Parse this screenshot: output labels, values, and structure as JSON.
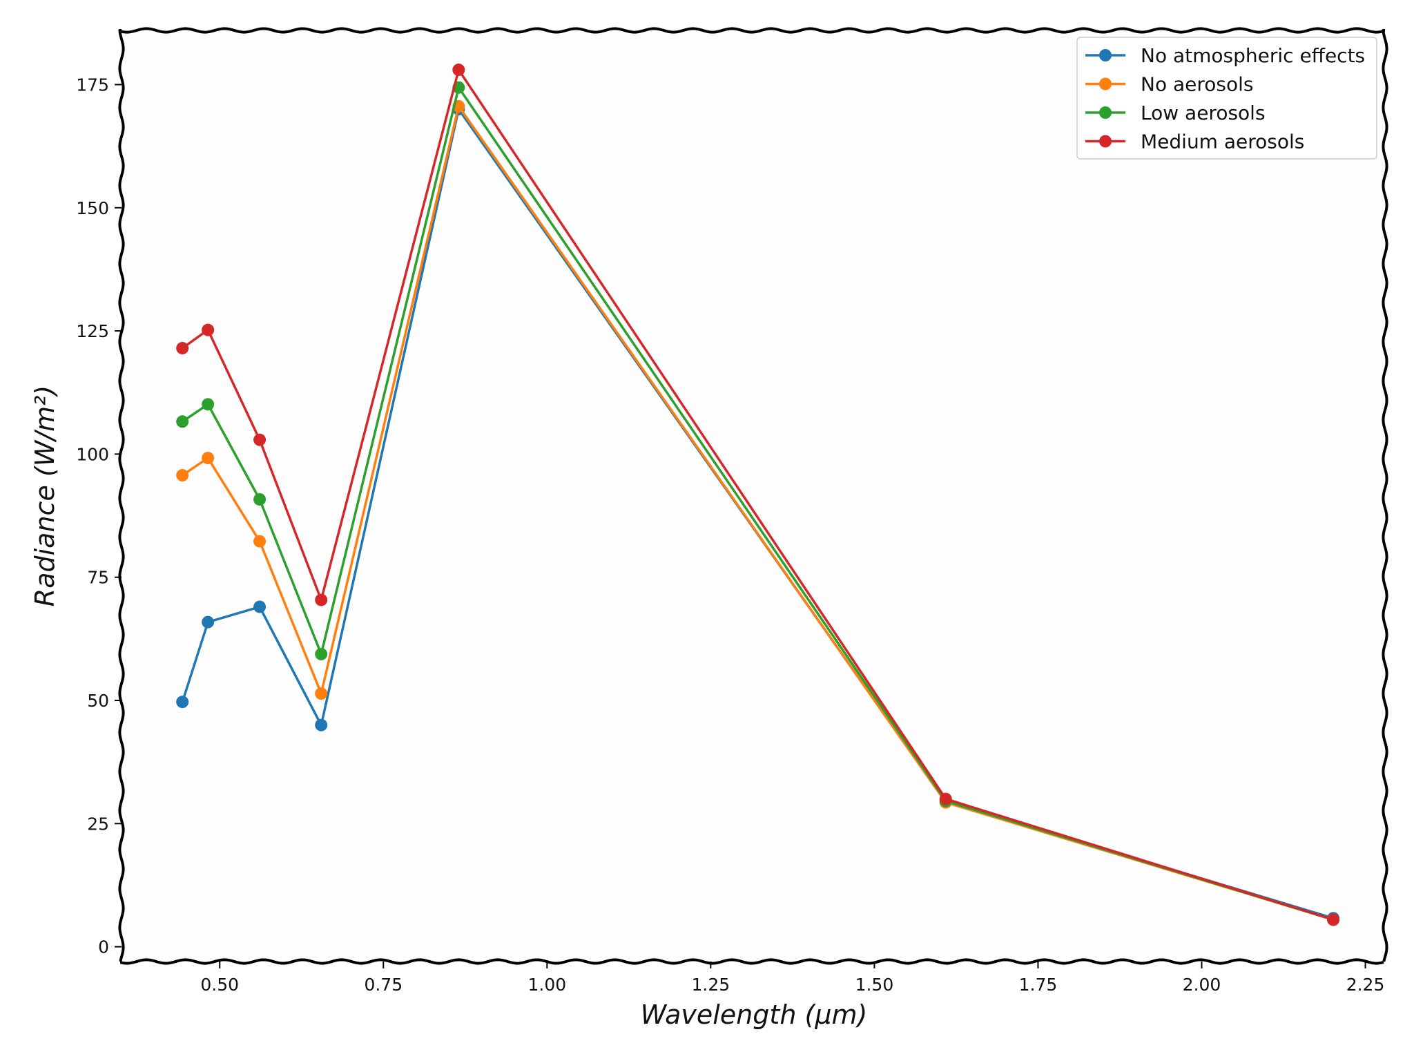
{
  "chart_data": {
    "type": "line",
    "title": "",
    "xlabel": "Wavelength (μm)",
    "ylabel": "Radiance (W/m²)",
    "xlim": [
      0.35,
      2.28
    ],
    "ylim": [
      -3,
      186
    ],
    "grid": false,
    "legend_position": "top-right",
    "xticks": [
      0.5,
      0.75,
      1.0,
      1.25,
      1.5,
      1.75,
      2.0,
      2.25
    ],
    "xtick_labels": [
      "0.50",
      "0.75",
      "1.00",
      "1.25",
      "1.50",
      "1.75",
      "2.00",
      "2.25"
    ],
    "yticks": [
      0,
      25,
      50,
      75,
      100,
      125,
      150,
      175
    ],
    "ytick_labels": [
      "0",
      "25",
      "50",
      "75",
      "100",
      "125",
      "150",
      "175"
    ],
    "x": [
      0.443,
      0.482,
      0.561,
      0.655,
      0.865,
      1.609,
      2.201
    ],
    "series": [
      {
        "name": "No atmospheric effects",
        "color": "#1f77b4",
        "values": [
          49.7,
          65.9,
          69.0,
          45.0,
          170.0,
          29.5,
          5.8
        ]
      },
      {
        "name": "No aerosols",
        "color": "#ff7f0e",
        "values": [
          95.7,
          99.2,
          82.3,
          51.4,
          170.6,
          29.3,
          5.5
        ]
      },
      {
        "name": "Low aerosols",
        "color": "#2ca02c",
        "values": [
          106.6,
          110.1,
          90.8,
          59.4,
          174.4,
          29.6,
          5.5
        ]
      },
      {
        "name": "Medium aerosols",
        "color": "#d62728",
        "values": [
          121.5,
          125.2,
          102.9,
          70.4,
          178.0,
          30.0,
          5.5
        ]
      }
    ]
  }
}
